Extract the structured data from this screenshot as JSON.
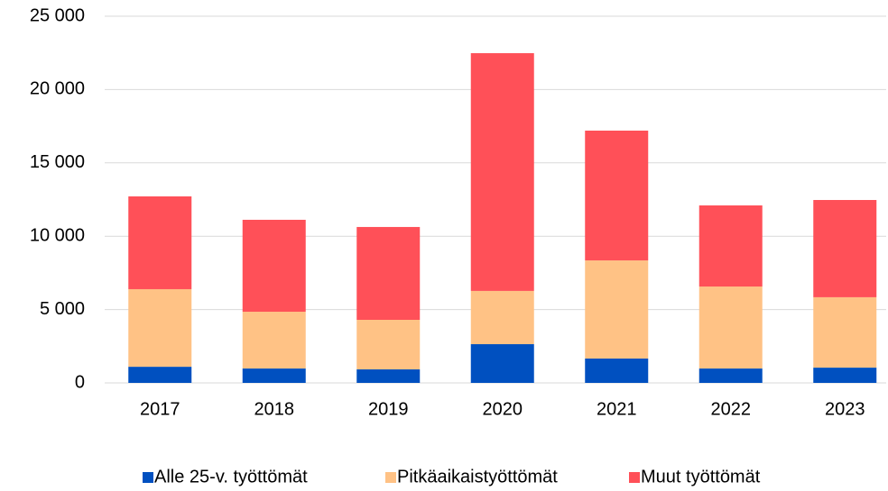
{
  "chart_data": {
    "type": "stacked_bar",
    "categories": [
      "2017",
      "2018",
      "2019",
      "2020",
      "2021",
      "2022",
      "2023"
    ],
    "series": [
      {
        "name": "Alle 25-v. työttömät",
        "color": "#0050c0",
        "values": [
          1100,
          980,
          920,
          2640,
          1660,
          980,
          1040
        ]
      },
      {
        "name": "Pitkäaikaistyöttömät",
        "color": "#ffc285",
        "values": [
          5290,
          3870,
          3380,
          3630,
          6690,
          5590,
          4800
        ]
      },
      {
        "name": "Muut työttömät",
        "color": "#ff5058",
        "values": [
          6325,
          6270,
          6330,
          16210,
          8850,
          5530,
          6630
        ]
      }
    ],
    "ylim": [
      0,
      25000
    ],
    "yticks": [
      0,
      {
        "value": 5000,
        "label": "5 000"
      },
      {
        "value": 10000,
        "label": "10 000"
      },
      {
        "value": 15000,
        "label": "15 000"
      },
      {
        "value": 20000,
        "label": "20 000"
      },
      {
        "value": 25000,
        "label": "25 000"
      }
    ],
    "grid": true,
    "legend": "bottom"
  }
}
